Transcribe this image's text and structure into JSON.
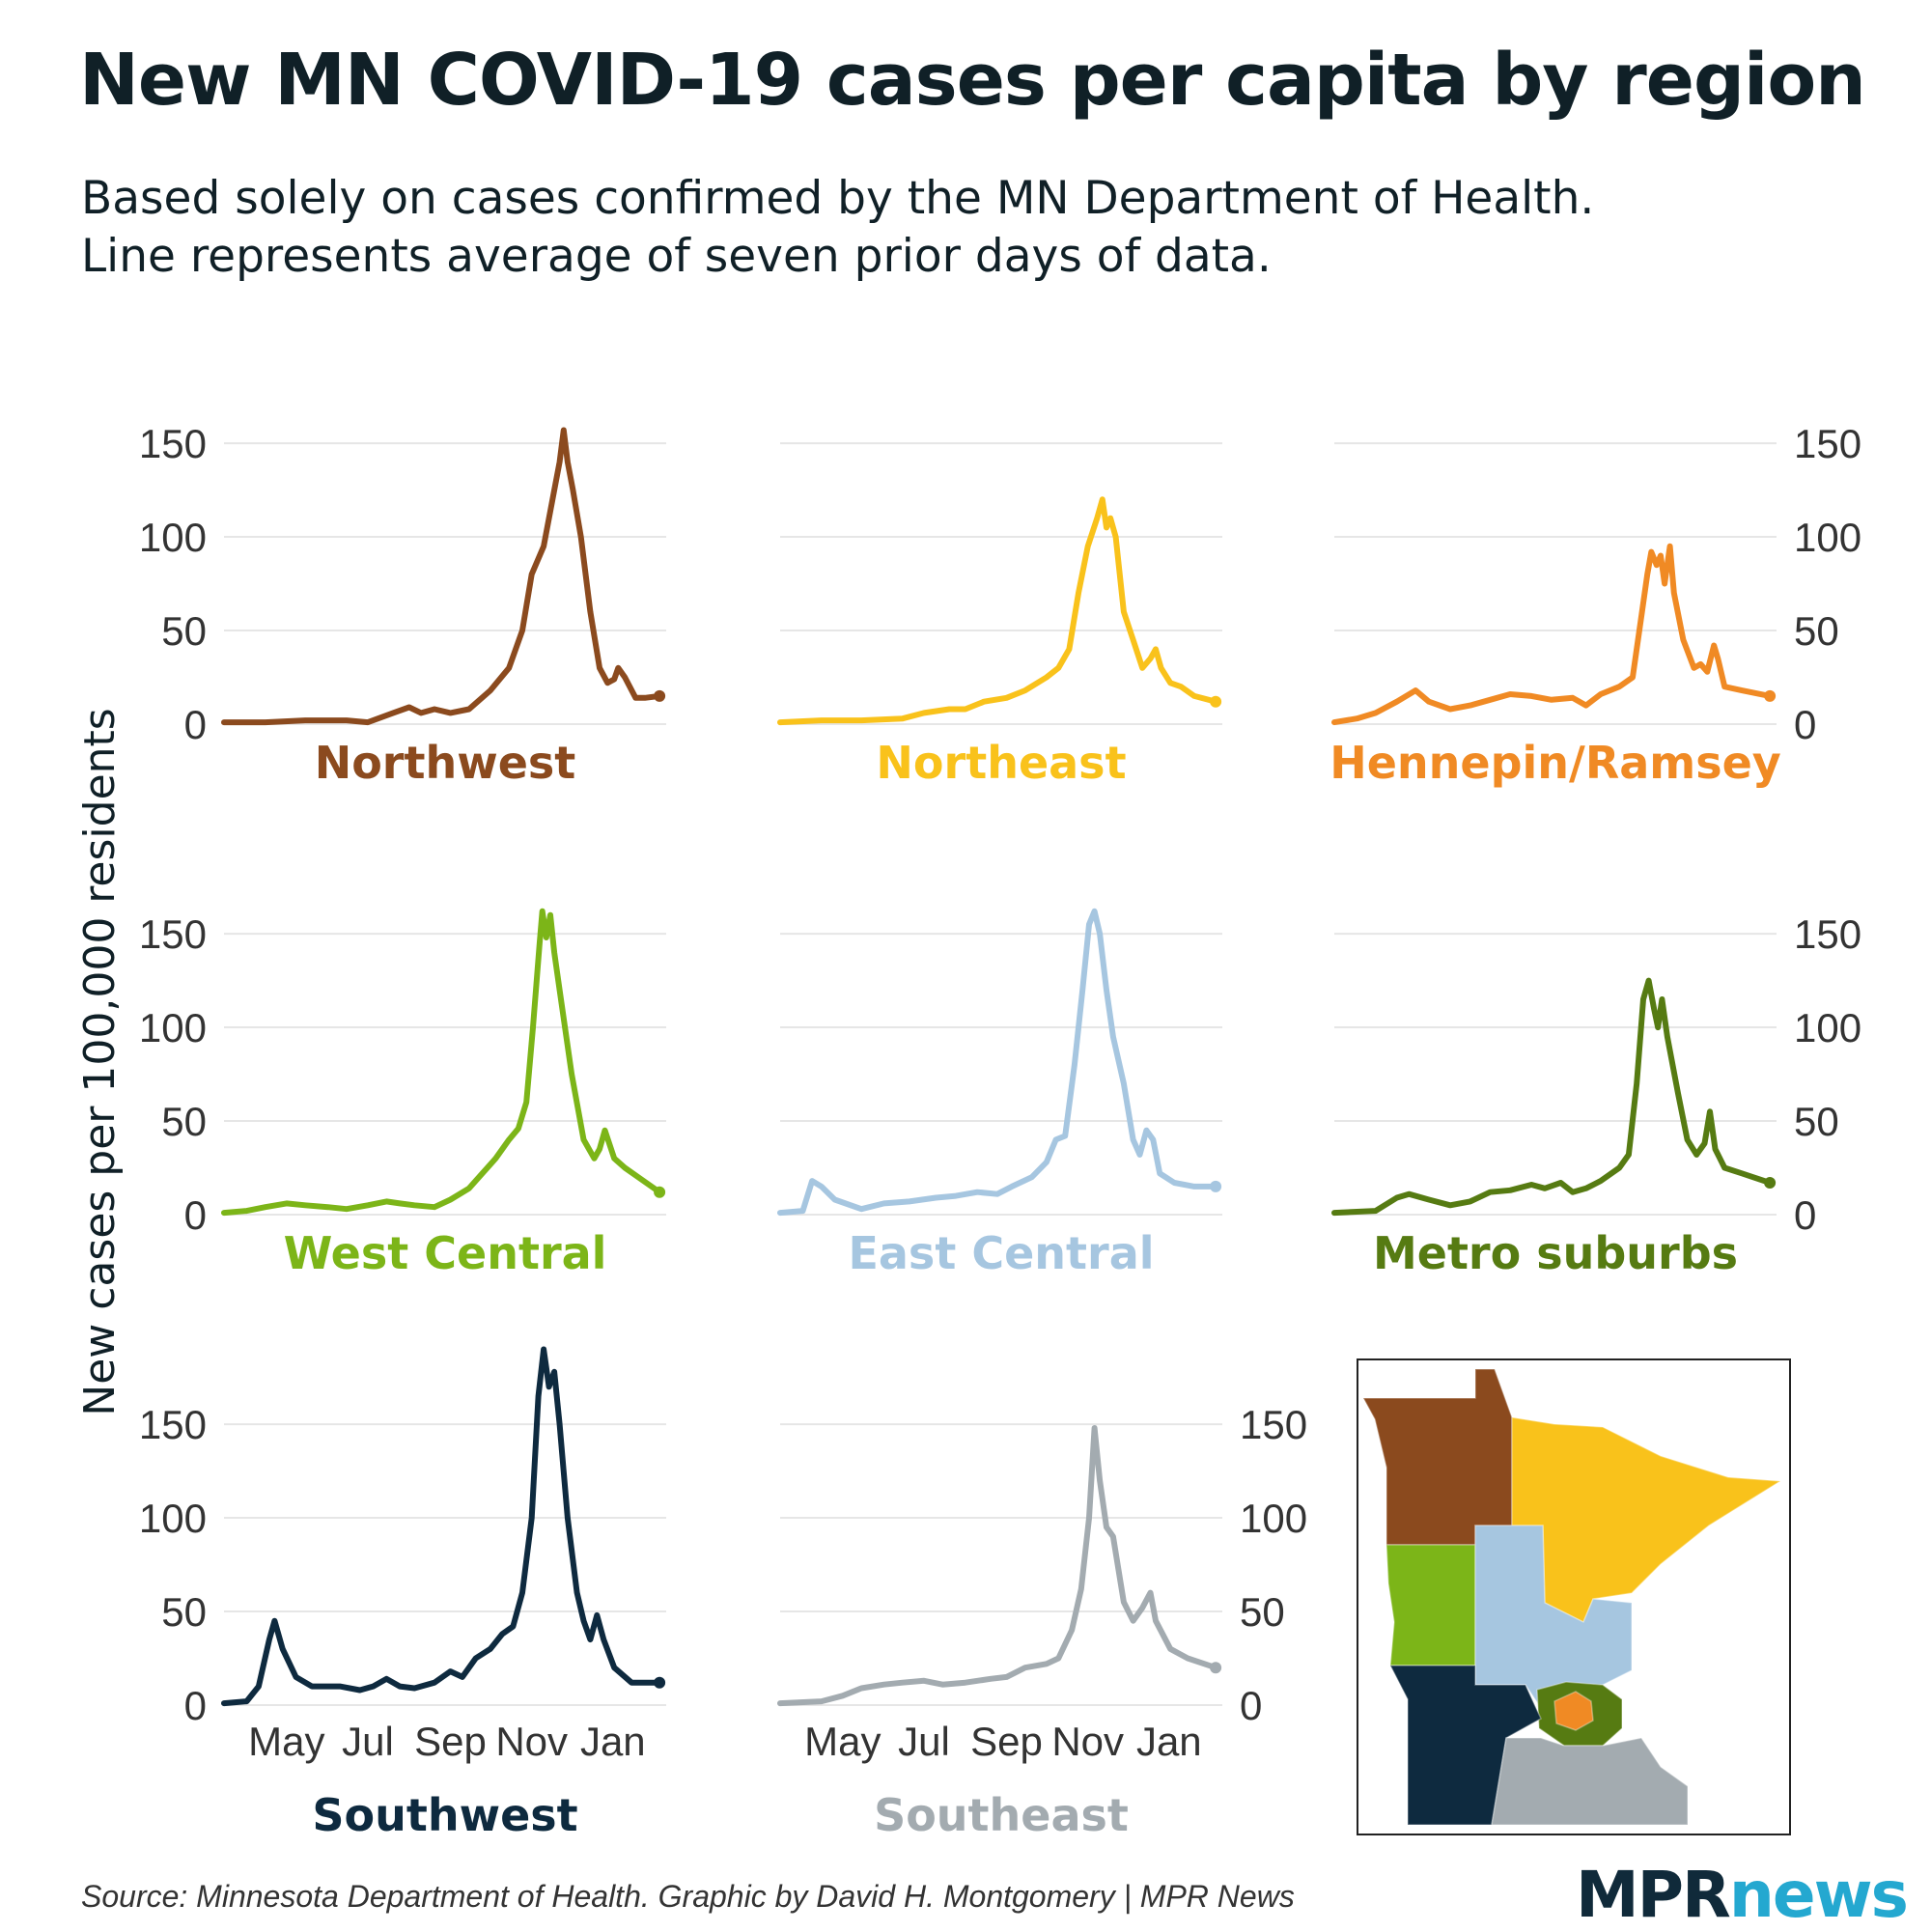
{
  "header": {
    "title": "New MN COVID-19 cases per capita by region",
    "subtitle_line1": "Based solely on cases confirmed by the MN Department of Health.",
    "subtitle_line2": "Line represents average of seven prior days of data."
  },
  "footer": {
    "source": "Source: Minnesota Department of Health. Graphic by David H. Montgomery | MPR News",
    "logo_part1": "MPR",
    "logo_part2": "news"
  },
  "chart_data": {
    "type": "line",
    "ylabel": "New cases per 100,000 residents",
    "xlabel": "",
    "x_start": "2020-03-15",
    "x_end": "2021-02-10",
    "x_ticks": [
      {
        "label": "May",
        "date": "2020-05-01"
      },
      {
        "label": "Jul",
        "date": "2020-07-01"
      },
      {
        "label": "Sep",
        "date": "2020-09-01"
      },
      {
        "label": "Nov",
        "date": "2020-11-01"
      },
      {
        "label": "Jan",
        "date": "2021-01-01"
      }
    ],
    "y_ticks": [
      0,
      50,
      100,
      150
    ],
    "ylim": [
      0,
      165
    ],
    "grid": true,
    "series": [
      {
        "name": "Northwest",
        "color": "#8B4A1E",
        "points": [
          [
            "2020-03-15",
            1
          ],
          [
            "2020-04-15",
            1
          ],
          [
            "2020-05-15",
            2
          ],
          [
            "2020-06-15",
            2
          ],
          [
            "2020-07-01",
            1
          ],
          [
            "2020-07-20",
            6
          ],
          [
            "2020-08-01",
            9
          ],
          [
            "2020-08-10",
            6
          ],
          [
            "2020-08-20",
            8
          ],
          [
            "2020-09-01",
            6
          ],
          [
            "2020-09-15",
            8
          ],
          [
            "2020-10-01",
            18
          ],
          [
            "2020-10-15",
            30
          ],
          [
            "2020-10-25",
            50
          ],
          [
            "2020-11-01",
            80
          ],
          [
            "2020-11-10",
            95
          ],
          [
            "2020-11-18",
            125
          ],
          [
            "2020-11-22",
            140
          ],
          [
            "2020-11-25",
            157
          ],
          [
            "2020-11-28",
            140
          ],
          [
            "2020-12-02",
            125
          ],
          [
            "2020-12-08",
            100
          ],
          [
            "2020-12-15",
            60
          ],
          [
            "2020-12-22",
            30
          ],
          [
            "2020-12-28",
            22
          ],
          [
            "2021-01-02",
            24
          ],
          [
            "2021-01-05",
            30
          ],
          [
            "2021-01-10",
            25
          ],
          [
            "2021-01-18",
            14
          ],
          [
            "2021-01-25",
            14
          ],
          [
            "2021-02-05",
            15
          ]
        ]
      },
      {
        "name": "Northeast",
        "color": "#F9C21B",
        "points": [
          [
            "2020-03-15",
            1
          ],
          [
            "2020-04-15",
            2
          ],
          [
            "2020-05-15",
            2
          ],
          [
            "2020-06-15",
            3
          ],
          [
            "2020-07-01",
            6
          ],
          [
            "2020-07-20",
            8
          ],
          [
            "2020-08-01",
            8
          ],
          [
            "2020-08-15",
            12
          ],
          [
            "2020-09-01",
            14
          ],
          [
            "2020-09-15",
            18
          ],
          [
            "2020-10-01",
            25
          ],
          [
            "2020-10-10",
            30
          ],
          [
            "2020-10-18",
            40
          ],
          [
            "2020-10-25",
            70
          ],
          [
            "2020-11-01",
            95
          ],
          [
            "2020-11-08",
            110
          ],
          [
            "2020-11-12",
            120
          ],
          [
            "2020-11-15",
            105
          ],
          [
            "2020-11-18",
            110
          ],
          [
            "2020-11-22",
            100
          ],
          [
            "2020-11-28",
            60
          ],
          [
            "2020-12-05",
            45
          ],
          [
            "2020-12-12",
            30
          ],
          [
            "2020-12-18",
            35
          ],
          [
            "2020-12-22",
            40
          ],
          [
            "2020-12-26",
            30
          ],
          [
            "2021-01-02",
            22
          ],
          [
            "2021-01-10",
            20
          ],
          [
            "2021-01-20",
            15
          ],
          [
            "2021-02-05",
            12
          ]
        ]
      },
      {
        "name": "Hennepin/Ramsey",
        "color": "#F08A24",
        "points": [
          [
            "2020-03-15",
            1
          ],
          [
            "2020-04-01",
            3
          ],
          [
            "2020-04-15",
            6
          ],
          [
            "2020-05-01",
            12
          ],
          [
            "2020-05-15",
            18
          ],
          [
            "2020-05-25",
            12
          ],
          [
            "2020-06-10",
            8
          ],
          [
            "2020-06-25",
            10
          ],
          [
            "2020-07-10",
            13
          ],
          [
            "2020-07-25",
            16
          ],
          [
            "2020-08-10",
            15
          ],
          [
            "2020-08-25",
            13
          ],
          [
            "2020-09-10",
            14
          ],
          [
            "2020-09-20",
            10
          ],
          [
            "2020-10-01",
            16
          ],
          [
            "2020-10-15",
            20
          ],
          [
            "2020-10-25",
            25
          ],
          [
            "2020-11-01",
            60
          ],
          [
            "2020-11-05",
            80
          ],
          [
            "2020-11-08",
            92
          ],
          [
            "2020-11-12",
            85
          ],
          [
            "2020-11-15",
            90
          ],
          [
            "2020-11-18",
            75
          ],
          [
            "2020-11-22",
            95
          ],
          [
            "2020-11-25",
            70
          ],
          [
            "2020-12-02",
            45
          ],
          [
            "2020-12-10",
            30
          ],
          [
            "2020-12-15",
            32
          ],
          [
            "2020-12-20",
            28
          ],
          [
            "2020-12-25",
            42
          ],
          [
            "2020-12-28",
            35
          ],
          [
            "2021-01-02",
            20
          ],
          [
            "2021-01-15",
            18
          ],
          [
            "2021-02-05",
            15
          ]
        ]
      },
      {
        "name": "West Central",
        "color": "#7CB518",
        "points": [
          [
            "2020-03-15",
            1
          ],
          [
            "2020-04-01",
            2
          ],
          [
            "2020-04-15",
            4
          ],
          [
            "2020-05-01",
            6
          ],
          [
            "2020-05-15",
            5
          ],
          [
            "2020-06-01",
            4
          ],
          [
            "2020-06-15",
            3
          ],
          [
            "2020-07-01",
            5
          ],
          [
            "2020-07-15",
            7
          ],
          [
            "2020-07-25",
            6
          ],
          [
            "2020-08-05",
            5
          ],
          [
            "2020-08-20",
            4
          ],
          [
            "2020-09-01",
            8
          ],
          [
            "2020-09-15",
            14
          ],
          [
            "2020-09-25",
            22
          ],
          [
            "2020-10-05",
            30
          ],
          [
            "2020-10-15",
            40
          ],
          [
            "2020-10-22",
            46
          ],
          [
            "2020-10-28",
            60
          ],
          [
            "2020-11-02",
            100
          ],
          [
            "2020-11-07",
            145
          ],
          [
            "2020-11-09",
            162
          ],
          [
            "2020-11-12",
            148
          ],
          [
            "2020-11-15",
            160
          ],
          [
            "2020-11-18",
            140
          ],
          [
            "2020-11-22",
            120
          ],
          [
            "2020-12-01",
            75
          ],
          [
            "2020-12-10",
            40
          ],
          [
            "2020-12-18",
            30
          ],
          [
            "2020-12-22",
            35
          ],
          [
            "2020-12-26",
            45
          ],
          [
            "2021-01-02",
            30
          ],
          [
            "2021-01-10",
            25
          ],
          [
            "2021-01-20",
            20
          ],
          [
            "2021-02-05",
            12
          ]
        ]
      },
      {
        "name": "East Central",
        "color": "#A6C6E0",
        "points": [
          [
            "2020-03-15",
            1
          ],
          [
            "2020-04-01",
            2
          ],
          [
            "2020-04-08",
            18
          ],
          [
            "2020-04-15",
            15
          ],
          [
            "2020-04-25",
            8
          ],
          [
            "2020-05-15",
            3
          ],
          [
            "2020-06-01",
            6
          ],
          [
            "2020-06-20",
            7
          ],
          [
            "2020-07-10",
            9
          ],
          [
            "2020-07-25",
            10
          ],
          [
            "2020-08-10",
            12
          ],
          [
            "2020-08-25",
            11
          ],
          [
            "2020-09-05",
            15
          ],
          [
            "2020-09-20",
            20
          ],
          [
            "2020-10-01",
            28
          ],
          [
            "2020-10-08",
            40
          ],
          [
            "2020-10-15",
            42
          ],
          [
            "2020-10-22",
            80
          ],
          [
            "2020-10-28",
            120
          ],
          [
            "2020-11-02",
            155
          ],
          [
            "2020-11-06",
            162
          ],
          [
            "2020-11-10",
            150
          ],
          [
            "2020-11-15",
            120
          ],
          [
            "2020-11-20",
            95
          ],
          [
            "2020-11-28",
            70
          ],
          [
            "2020-12-05",
            40
          ],
          [
            "2020-12-10",
            32
          ],
          [
            "2020-12-15",
            45
          ],
          [
            "2020-12-20",
            40
          ],
          [
            "2020-12-25",
            22
          ],
          [
            "2021-01-05",
            17
          ],
          [
            "2021-01-20",
            15
          ],
          [
            "2021-02-05",
            15
          ]
        ]
      },
      {
        "name": "Metro suburbs",
        "color": "#567B12",
        "points": [
          [
            "2020-03-15",
            1
          ],
          [
            "2020-04-15",
            2
          ],
          [
            "2020-05-01",
            9
          ],
          [
            "2020-05-10",
            11
          ],
          [
            "2020-05-25",
            8
          ],
          [
            "2020-06-10",
            5
          ],
          [
            "2020-06-25",
            7
          ],
          [
            "2020-07-10",
            12
          ],
          [
            "2020-07-25",
            13
          ],
          [
            "2020-08-10",
            16
          ],
          [
            "2020-08-20",
            14
          ],
          [
            "2020-09-01",
            17
          ],
          [
            "2020-09-10",
            12
          ],
          [
            "2020-09-20",
            14
          ],
          [
            "2020-10-01",
            18
          ],
          [
            "2020-10-15",
            25
          ],
          [
            "2020-10-22",
            32
          ],
          [
            "2020-10-28",
            70
          ],
          [
            "2020-11-02",
            115
          ],
          [
            "2020-11-06",
            125
          ],
          [
            "2020-11-10",
            110
          ],
          [
            "2020-11-13",
            100
          ],
          [
            "2020-11-16",
            115
          ],
          [
            "2020-11-20",
            95
          ],
          [
            "2020-11-28",
            65
          ],
          [
            "2020-12-05",
            40
          ],
          [
            "2020-12-12",
            32
          ],
          [
            "2020-12-18",
            38
          ],
          [
            "2020-12-22",
            55
          ],
          [
            "2020-12-26",
            35
          ],
          [
            "2021-01-02",
            25
          ],
          [
            "2021-01-15",
            22
          ],
          [
            "2021-02-05",
            17
          ]
        ]
      },
      {
        "name": "Southwest",
        "color": "#0E2A3F",
        "points": [
          [
            "2020-03-15",
            1
          ],
          [
            "2020-04-01",
            2
          ],
          [
            "2020-04-10",
            10
          ],
          [
            "2020-04-18",
            35
          ],
          [
            "2020-04-22",
            45
          ],
          [
            "2020-04-28",
            30
          ],
          [
            "2020-05-08",
            15
          ],
          [
            "2020-05-20",
            10
          ],
          [
            "2020-06-10",
            10
          ],
          [
            "2020-06-25",
            8
          ],
          [
            "2020-07-05",
            10
          ],
          [
            "2020-07-15",
            14
          ],
          [
            "2020-07-25",
            10
          ],
          [
            "2020-08-05",
            9
          ],
          [
            "2020-08-20",
            12
          ],
          [
            "2020-09-01",
            18
          ],
          [
            "2020-09-10",
            15
          ],
          [
            "2020-09-20",
            25
          ],
          [
            "2020-10-01",
            30
          ],
          [
            "2020-10-10",
            38
          ],
          [
            "2020-10-18",
            42
          ],
          [
            "2020-10-25",
            60
          ],
          [
            "2020-11-01",
            100
          ],
          [
            "2020-11-06",
            165
          ],
          [
            "2020-11-10",
            190
          ],
          [
            "2020-11-14",
            170
          ],
          [
            "2020-11-18",
            178
          ],
          [
            "2020-11-22",
            150
          ],
          [
            "2020-11-28",
            100
          ],
          [
            "2020-12-05",
            60
          ],
          [
            "2020-12-10",
            45
          ],
          [
            "2020-12-15",
            35
          ],
          [
            "2020-12-20",
            48
          ],
          [
            "2020-12-25",
            35
          ],
          [
            "2021-01-02",
            20
          ],
          [
            "2021-01-15",
            12
          ],
          [
            "2021-02-05",
            12
          ]
        ]
      },
      {
        "name": "Southeast",
        "color": "#A3ABB0",
        "points": [
          [
            "2020-03-15",
            1
          ],
          [
            "2020-04-15",
            2
          ],
          [
            "2020-05-01",
            5
          ],
          [
            "2020-05-15",
            9
          ],
          [
            "2020-06-01",
            11
          ],
          [
            "2020-06-15",
            12
          ],
          [
            "2020-07-01",
            13
          ],
          [
            "2020-07-15",
            11
          ],
          [
            "2020-08-01",
            12
          ],
          [
            "2020-08-20",
            14
          ],
          [
            "2020-09-01",
            15
          ],
          [
            "2020-09-15",
            20
          ],
          [
            "2020-10-01",
            22
          ],
          [
            "2020-10-10",
            25
          ],
          [
            "2020-10-20",
            40
          ],
          [
            "2020-10-27",
            62
          ],
          [
            "2020-11-02",
            100
          ],
          [
            "2020-11-06",
            148
          ],
          [
            "2020-11-10",
            120
          ],
          [
            "2020-11-15",
            95
          ],
          [
            "2020-11-20",
            90
          ],
          [
            "2020-11-28",
            55
          ],
          [
            "2020-12-05",
            45
          ],
          [
            "2020-12-12",
            52
          ],
          [
            "2020-12-18",
            60
          ],
          [
            "2020-12-22",
            45
          ],
          [
            "2021-01-02",
            30
          ],
          [
            "2021-01-15",
            25
          ],
          [
            "2021-02-05",
            20
          ]
        ]
      }
    ]
  },
  "map": {
    "regions": [
      {
        "name": "Northwest",
        "color": "#8B4A1E"
      },
      {
        "name": "Northeast",
        "color": "#F9C21B"
      },
      {
        "name": "West Central",
        "color": "#7CB518"
      },
      {
        "name": "East Central",
        "color": "#A6C6E0"
      },
      {
        "name": "Metro suburbs",
        "color": "#567B12"
      },
      {
        "name": "Hennepin/Ramsey",
        "color": "#F08A24"
      },
      {
        "name": "Southwest",
        "color": "#0E2A3F"
      },
      {
        "name": "Southeast",
        "color": "#A3ABB0"
      }
    ]
  }
}
